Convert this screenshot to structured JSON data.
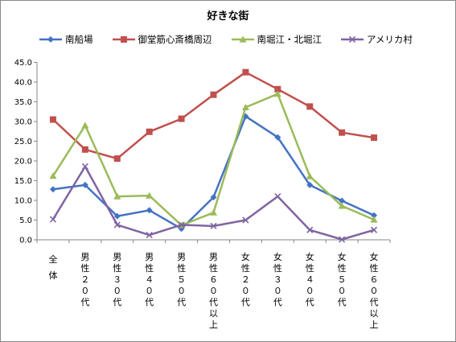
{
  "chart_data": {
    "type": "line",
    "title": "好きな街",
    "xlabel": "",
    "ylabel": "",
    "categories": [
      "全体",
      "男性２０代",
      "男性３０代",
      "男性４０代",
      "男性５０代",
      "男性６０代以上",
      "女性２０代",
      "女性３０代",
      "女性４０代",
      "女性５０代",
      "女性６０代以上"
    ],
    "ylim": [
      0,
      45
    ],
    "yticks": [
      "0.0",
      "5.0",
      "10.0",
      "15.0",
      "20.0",
      "25.0",
      "30.0",
      "35.0",
      "40.0",
      "45.0"
    ],
    "grid": false,
    "legend_position": "top",
    "series": [
      {
        "name": "南船場",
        "color": "#4472C4",
        "marker": "diamond",
        "values": [
          12.8,
          13.9,
          6.0,
          7.5,
          2.8,
          10.8,
          31.3,
          26.0,
          13.9,
          9.9,
          6.2
        ]
      },
      {
        "name": "御堂筋心斎橋周辺",
        "color": "#C0504D",
        "marker": "square",
        "values": [
          30.5,
          22.9,
          20.6,
          27.4,
          30.7,
          36.8,
          42.5,
          38.2,
          33.8,
          27.2,
          25.9
        ]
      },
      {
        "name": "南堀江・北堀江",
        "color": "#9BBB59",
        "marker": "triangle",
        "values": [
          16.2,
          29.0,
          11.0,
          11.2,
          3.7,
          6.9,
          33.6,
          37.0,
          16.1,
          8.6,
          5.1
        ]
      },
      {
        "name": "アメリカ村",
        "color": "#8064A2",
        "marker": "x",
        "values": [
          5.2,
          18.6,
          3.8,
          1.2,
          3.8,
          3.5,
          5.0,
          11.0,
          2.5,
          0.1,
          2.5
        ]
      }
    ]
  }
}
